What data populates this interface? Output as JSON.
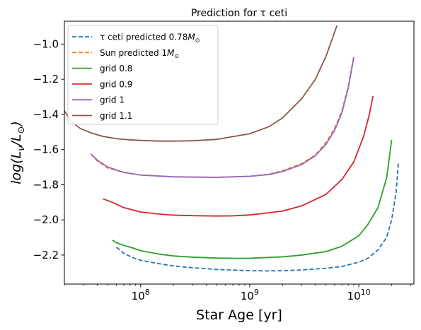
{
  "chart_data": {
    "type": "line",
    "title": "Prediction for τ ceti",
    "xlabel": "Star Age [yr]",
    "ylabel": "log(L_ν/L_⊙)",
    "xscale": "log",
    "xlim": [
      20000000,
      32000000000
    ],
    "ylim": [
      -2.365,
      -0.87
    ],
    "x_ticks": [
      {
        "value": 100000000,
        "base": "10",
        "exp": "8"
      },
      {
        "value": 1000000000,
        "base": "10",
        "exp": "9"
      },
      {
        "value": 10000000000,
        "base": "10",
        "exp": "10"
      }
    ],
    "y_ticks": [
      {
        "value": -1.0,
        "label": "−1.0"
      },
      {
        "value": -1.2,
        "label": "−1.2"
      },
      {
        "value": -1.4,
        "label": "−1.4"
      },
      {
        "value": -1.6,
        "label": "−1.6"
      },
      {
        "value": -1.8,
        "label": "−1.8"
      },
      {
        "value": -2.0,
        "label": "−2.0"
      },
      {
        "value": -2.2,
        "label": "−2.2"
      }
    ],
    "grid": false,
    "legend_position": "top-left",
    "series": [
      {
        "name": "τ ceti predicted 0.78M⊙",
        "name_parts": {
          "pre": "τ ceti predicted 0.78",
          "m": "M",
          "sub": "⊙"
        },
        "color": "#1f77b4",
        "style": "dashed",
        "x": [
          60000000,
          70000000,
          85000000,
          100000000,
          150000000,
          200000000,
          300000000,
          500000000,
          1000000000,
          1500000000,
          2000000000,
          3000000000,
          5000000000,
          7000000000,
          10000000000,
          12000000000,
          15000000000,
          18000000000,
          20000000000,
          22000000000,
          23000000000
        ],
        "y": [
          -2.155,
          -2.19,
          -2.215,
          -2.23,
          -2.25,
          -2.262,
          -2.272,
          -2.282,
          -2.289,
          -2.29,
          -2.289,
          -2.285,
          -2.275,
          -2.265,
          -2.24,
          -2.22,
          -2.17,
          -2.1,
          -2.0,
          -1.84,
          -1.68
        ]
      },
      {
        "name": "Sun predicted 1M⊙",
        "name_parts": {
          "pre": "Sun predicted 1",
          "m": "M",
          "sub": "⊙"
        },
        "color": "#ff7f0e",
        "style": "dashed",
        "x": [
          35000000,
          40000000,
          50000000,
          70000000,
          100000000,
          200000000,
          500000000,
          1000000000,
          1500000000,
          2000000000,
          3000000000,
          4000000000,
          5000000000,
          6000000000,
          7000000000,
          8000000000,
          9000000000
        ],
        "y": [
          -1.625,
          -1.665,
          -1.705,
          -1.73,
          -1.745,
          -1.755,
          -1.758,
          -1.752,
          -1.74,
          -1.72,
          -1.68,
          -1.63,
          -1.56,
          -1.48,
          -1.38,
          -1.24,
          -1.07
        ]
      },
      {
        "name": "grid 0.8",
        "color": "#2ca02c",
        "style": "solid",
        "x": [
          55000000,
          60000000,
          70000000,
          85000000,
          100000000,
          150000000,
          200000000,
          300000000,
          500000000,
          800000000,
          1000000000,
          2000000000,
          3000000000,
          5000000000,
          7000000000,
          10000000000,
          12000000000,
          15000000000,
          18000000000,
          20000000000
        ],
        "y": [
          -2.115,
          -2.13,
          -2.145,
          -2.16,
          -2.175,
          -2.195,
          -2.205,
          -2.212,
          -2.217,
          -2.219,
          -2.218,
          -2.21,
          -2.2,
          -2.18,
          -2.15,
          -2.09,
          -2.03,
          -1.93,
          -1.76,
          -1.545
        ]
      },
      {
        "name": "grid 0.9",
        "color": "#d62728",
        "style": "solid",
        "x": [
          45000000,
          55000000,
          70000000,
          100000000,
          150000000,
          200000000,
          300000000,
          500000000,
          700000000,
          1000000000,
          2000000000,
          3000000000,
          5000000000,
          7000000000,
          9000000000,
          11000000000,
          12500000000,
          13500000000
        ],
        "y": [
          -1.88,
          -1.9,
          -1.93,
          -1.955,
          -1.967,
          -1.973,
          -1.976,
          -1.978,
          -1.977,
          -1.972,
          -1.95,
          -1.92,
          -1.855,
          -1.77,
          -1.67,
          -1.53,
          -1.4,
          -1.295
        ]
      },
      {
        "name": "grid 1",
        "color": "#9467bd",
        "style": "solid",
        "x": [
          35000000,
          40000000,
          50000000,
          70000000,
          100000000,
          200000000,
          500000000,
          1000000000,
          1500000000,
          2000000000,
          3000000000,
          4000000000,
          5000000000,
          6000000000,
          7000000000,
          8000000000,
          9000000000
        ],
        "y": [
          -1.625,
          -1.66,
          -1.7,
          -1.73,
          -1.745,
          -1.755,
          -1.758,
          -1.752,
          -1.742,
          -1.725,
          -1.685,
          -1.635,
          -1.57,
          -1.49,
          -1.39,
          -1.25,
          -1.075
        ]
      },
      {
        "name": "grid 1.1",
        "color": "#8c564b",
        "style": "solid",
        "x": [
          20000000,
          23000000,
          28000000,
          35000000,
          45000000,
          60000000,
          80000000,
          100000000,
          150000000,
          200000000,
          300000000,
          500000000,
          1000000000,
          1500000000,
          2000000000,
          3000000000,
          4000000000,
          5000000000,
          6300000000
        ],
        "y": [
          -1.38,
          -1.44,
          -1.48,
          -1.505,
          -1.525,
          -1.538,
          -1.545,
          -1.548,
          -1.552,
          -1.552,
          -1.55,
          -1.542,
          -1.51,
          -1.47,
          -1.42,
          -1.31,
          -1.2,
          -1.07,
          -0.895
        ]
      }
    ]
  }
}
